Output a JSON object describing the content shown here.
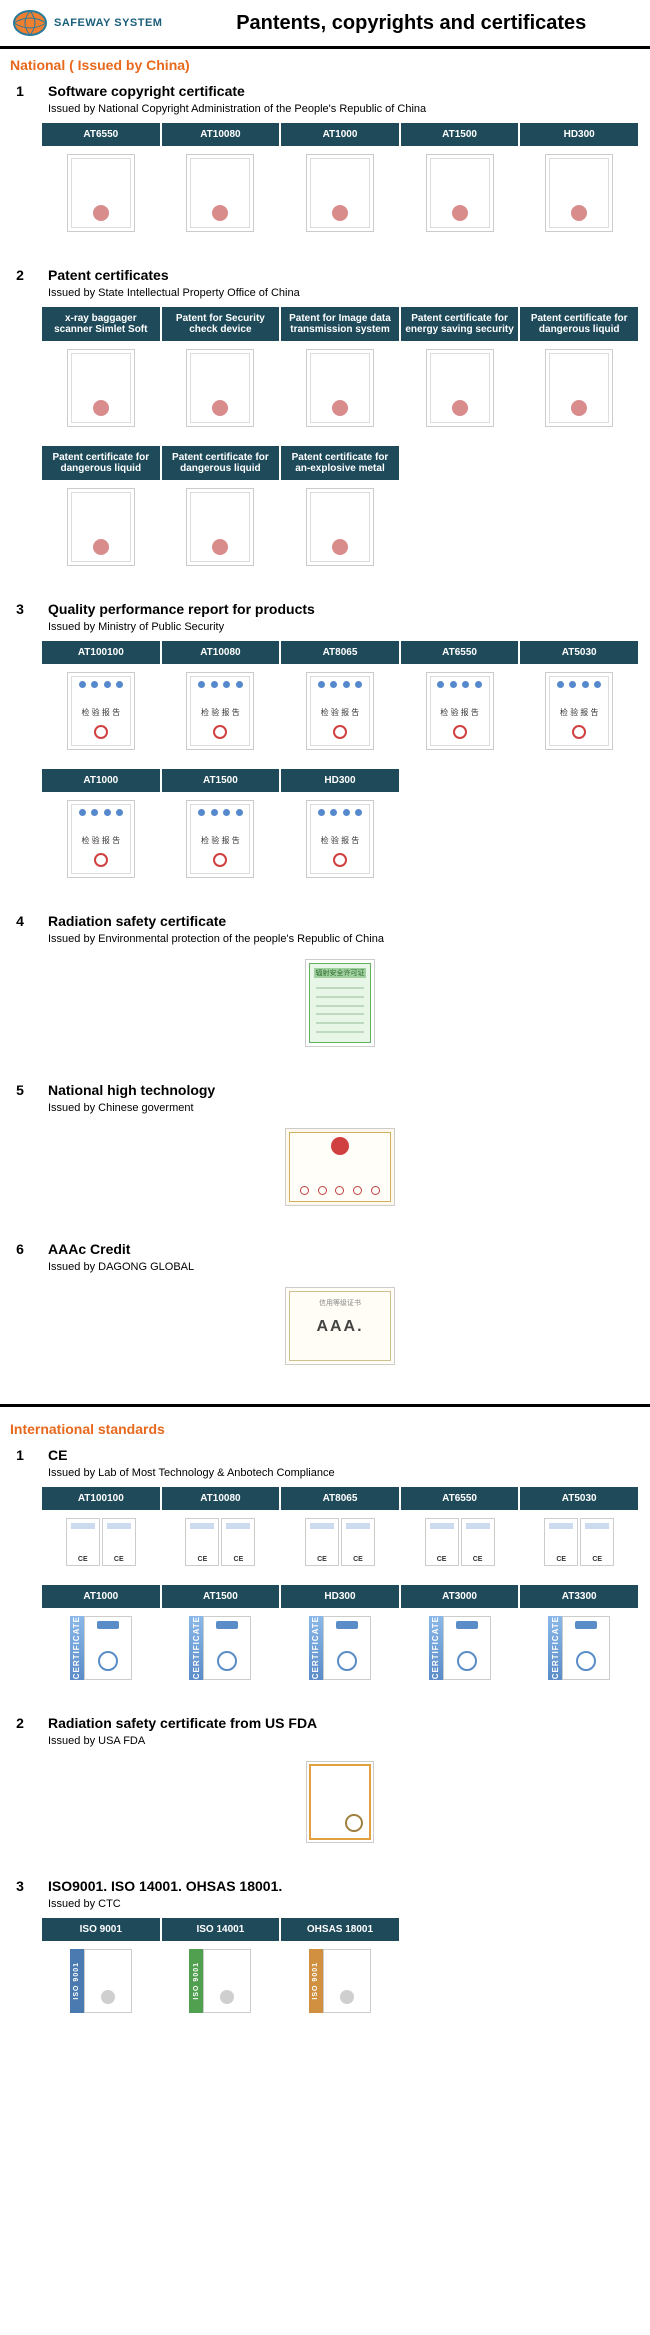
{
  "header": {
    "brand": "SAFEWAY SYSTEM",
    "title": "Pantents, copyrights and certificates"
  },
  "colors": {
    "accent_orange": "#e8681d",
    "header_bg": "#1e4a5a"
  },
  "sections": {
    "national": {
      "heading": "National ( Issued by China)",
      "groups": [
        {
          "num": "1",
          "title": "Software copyright certificate",
          "issued": "Issued by National Copyright Administration of the People's Republic of China",
          "rows": [
            {
              "headers": [
                "AT6550",
                "AT10080",
                "AT1000",
                "AT1500",
                "HD300"
              ],
              "thumbs": 5,
              "style": "plain"
            }
          ]
        },
        {
          "num": "2",
          "title": "Patent certificates",
          "issued": "Issued by State Intellectual Property Office of China",
          "rows": [
            {
              "headers": [
                "x-ray baggager scanner Simlet Soft",
                "Patent for Security check device",
                "Patent for Image data transmission system",
                "Patent certificate for energy saving security",
                "Patent certificate for dangerous liquid"
              ],
              "thumbs": 5,
              "style": "plain"
            },
            {
              "headers": [
                "Patent certificate for dangerous liquid",
                "Patent certificate for dangerous liquid",
                "Patent certificate for an-explosive metal"
              ],
              "thumbs": 3,
              "style": "plain"
            }
          ]
        },
        {
          "num": "3",
          "title": "Quality performance report for products",
          "issued": "Issued by Ministry of Public Security",
          "rows": [
            {
              "headers": [
                "AT100100",
                "AT10080",
                "AT8065",
                "AT6550",
                "AT5030"
              ],
              "thumbs": 5,
              "style": "report"
            },
            {
              "headers": [
                "AT1000",
                "AT1500",
                "HD300"
              ],
              "thumbs": 3,
              "style": "report"
            }
          ]
        },
        {
          "num": "4",
          "title": "Radiation safety certificate",
          "issued": "Issued by Environmental protection of the people's Republic of China",
          "rows": [
            {
              "headers": [],
              "thumbs": 1,
              "style": "green-cert"
            }
          ]
        },
        {
          "num": "5",
          "title": "National high technology",
          "issued": "Issued by Chinese goverment",
          "rows": [
            {
              "headers": [],
              "thumbs": 1,
              "style": "wide"
            }
          ]
        },
        {
          "num": "6",
          "title": "AAAc Credit",
          "issued": "Issued by DAGONG GLOBAL",
          "rows": [
            {
              "headers": [],
              "thumbs": 1,
              "style": "aaa"
            }
          ]
        }
      ]
    },
    "international": {
      "heading": "International standards",
      "groups": [
        {
          "num": "1",
          "title": "CE",
          "issued": "Issued by Lab of Most Technology & Anbotech Compliance",
          "rows": [
            {
              "headers": [
                "AT100100",
                "AT10080",
                "AT8065",
                "AT6550",
                "AT5030"
              ],
              "thumbs": 5,
              "style": "ce-pair"
            },
            {
              "headers": [
                "AT1000",
                "AT1500",
                "HD300",
                "AT3000",
                "AT3300"
              ],
              "thumbs": 5,
              "style": "ce-tall"
            }
          ]
        },
        {
          "num": "2",
          "title": "Radiation safety certificate from US FDA",
          "issued": "Issued by USA FDA",
          "rows": [
            {
              "headers": [],
              "thumbs": 1,
              "style": "fda"
            }
          ]
        },
        {
          "num": "3",
          "title": "ISO9001. ISO 14001. OHSAS 18001.",
          "issued": "Issued by CTC",
          "rows": [
            {
              "headers": [
                "ISO 9001",
                "ISO 14001",
                "OHSAS 18001"
              ],
              "thumbs": 3,
              "style": "iso",
              "iso_colors": [
                "#4a7ab0",
                "#50a050",
                "#d09040"
              ],
              "iso_label": "ISO 9001"
            }
          ]
        }
      ]
    }
  },
  "misc": {
    "aaa_text": "AAA.",
    "aaa_small": "信用等级证书",
    "report_text": "检 验 报 告",
    "green_label": "辐射安全许可证",
    "ceband_label": "CERTIFICATE"
  }
}
